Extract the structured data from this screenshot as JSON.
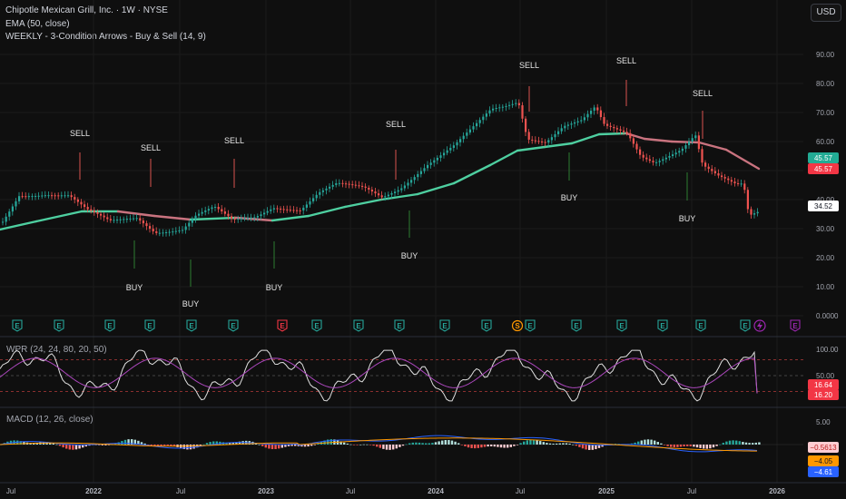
{
  "header": {
    "symbol_line": "Chipotle Mexican Grill, Inc. · 1W · NYSE",
    "ema_line": "EMA (50, close)",
    "indicator_line": "WEEKLY - 3-Condition Arrows - Buy & Sell (14, 9)",
    "currency": "USD"
  },
  "price_axis": {
    "ticks": [
      "90.00",
      "80.00",
      "70.00",
      "60.00",
      "50.00",
      "40.00",
      "30.00",
      "20.00",
      "10.00",
      "0.0000"
    ],
    "tags": [
      {
        "label": "45.57",
        "color": "#22ab94",
        "text_color": "#ffffff"
      },
      {
        "label": "45.57",
        "color": "#f23645",
        "text_color": "#ffffff"
      },
      {
        "label": "34.52",
        "color": "#ffffff",
        "text_color": "#131722"
      }
    ]
  },
  "signals": {
    "sell_label": "SELL",
    "buy_label": "BUY"
  },
  "events": {
    "earnings_letter": "E",
    "split_letter": "S",
    "colors": {
      "earnings": "#26a69a",
      "earnings_neg": "#f23645",
      "split": "#ff9800",
      "upcoming": "#9c27b0"
    }
  },
  "wpr_pane": {
    "title": "WPR (24, 24, 80, 20, 50)",
    "ticks": [
      "100.00",
      "50.00"
    ],
    "tags": [
      {
        "label": "16.64",
        "color": "#f23645"
      },
      {
        "label": "16.20",
        "color": "#f23645"
      }
    ]
  },
  "macd_pane": {
    "title": "MACD (12, 26, close)",
    "ticks": [
      "5.00"
    ],
    "tags": [
      {
        "label": "−0.5613",
        "color": "#ffcdd2",
        "text_color": "#b71c1c"
      },
      {
        "label": "−4.05",
        "color": "#ff9800",
        "text_color": "#131722"
      },
      {
        "label": "−4.61",
        "color": "#2962ff",
        "text_color": "#ffffff"
      }
    ]
  },
  "time_axis": {
    "labels": [
      "Jul",
      "2022",
      "Jul",
      "2023",
      "Jul",
      "2024",
      "Jul",
      "2025",
      "Jul",
      "2026"
    ]
  },
  "colors": {
    "up": "#26a69a",
    "down": "#ef5350",
    "ema_up": "#4ecfa0",
    "ema_down": "#c9737f",
    "wpr_main": "#e0e0e0",
    "wpr_signal": "#ab47bc",
    "macd_line": "#2962ff",
    "signal_line": "#ff9800"
  }
}
